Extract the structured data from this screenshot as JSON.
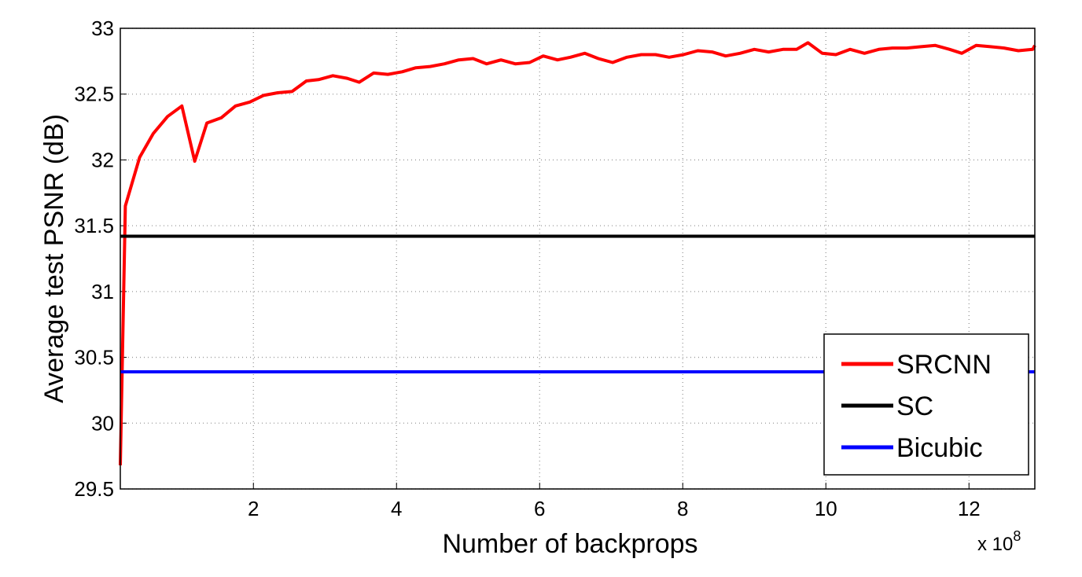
{
  "chart_data": {
    "type": "line",
    "xlabel": "Number of backprops",
    "ylabel": "Average test PSNR (dB)",
    "x_scale_label": {
      "base": "x 10",
      "exponent": "8"
    },
    "xlim": [
      0.14,
      12.92
    ],
    "ylim": [
      29.5,
      33
    ],
    "xticks": [
      2,
      4,
      6,
      8,
      10,
      12
    ],
    "yticks": [
      29.5,
      30,
      30.5,
      31,
      31.5,
      32,
      32.5,
      33
    ],
    "grid": true,
    "legend": "lower-right",
    "series": [
      {
        "name": "SRCNN",
        "color": "#ff0000",
        "x": [
          0.14,
          0.21,
          0.41,
          0.6,
          0.8,
          1.0,
          1.18,
          1.35,
          1.55,
          1.75,
          1.95,
          2.14,
          2.34,
          2.54,
          2.74,
          2.91,
          3.11,
          3.31,
          3.48,
          3.68,
          3.88,
          4.08,
          4.27,
          4.47,
          4.67,
          4.87,
          5.07,
          5.26,
          5.46,
          5.66,
          5.86,
          6.05,
          6.25,
          6.43,
          6.63,
          6.82,
          7.02,
          7.22,
          7.42,
          7.62,
          7.81,
          8.01,
          8.21,
          8.41,
          8.6,
          8.8,
          9.0,
          9.2,
          9.4,
          9.59,
          9.75,
          9.95,
          10.14,
          10.34,
          10.54,
          10.74,
          10.93,
          11.13,
          11.33,
          11.53,
          11.73,
          11.9,
          12.1,
          12.3,
          12.49,
          12.69,
          12.89,
          12.92
        ],
        "values": [
          29.68,
          31.65,
          32.02,
          32.2,
          32.33,
          32.41,
          31.99,
          32.28,
          32.32,
          32.41,
          32.44,
          32.49,
          32.51,
          32.52,
          32.6,
          32.61,
          32.64,
          32.62,
          32.59,
          32.66,
          32.65,
          32.67,
          32.7,
          32.71,
          32.73,
          32.76,
          32.77,
          32.73,
          32.76,
          32.73,
          32.74,
          32.79,
          32.76,
          32.78,
          32.81,
          32.77,
          32.74,
          32.78,
          32.8,
          32.8,
          32.78,
          32.8,
          32.83,
          32.82,
          32.79,
          32.81,
          32.84,
          32.82,
          32.84,
          32.84,
          32.89,
          32.81,
          32.8,
          32.84,
          32.81,
          32.84,
          32.85,
          32.85,
          32.86,
          32.87,
          32.84,
          32.81,
          32.87,
          32.86,
          32.85,
          32.83,
          32.84,
          32.87
        ]
      },
      {
        "name": "SC",
        "color": "#000000",
        "x": [
          0.14,
          12.92
        ],
        "values": [
          31.42,
          31.42
        ]
      },
      {
        "name": "Bicubic",
        "color": "#0000ff",
        "x": [
          0.14,
          12.92
        ],
        "values": [
          30.39,
          30.39
        ]
      }
    ]
  }
}
